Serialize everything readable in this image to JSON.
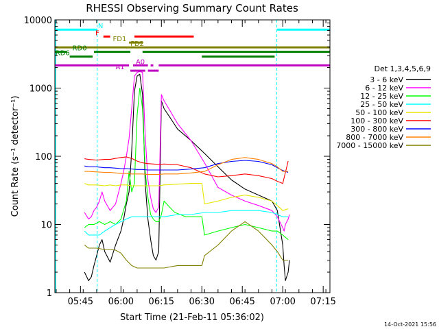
{
  "chart_data": {
    "type": "line",
    "title": "RHESSI Observing Summary Count Rates",
    "xlabel": "Start Time (21-Feb-11 05:36:02)",
    "ylabel": "Count Rate (s⁻¹ detector⁻¹)",
    "y_scale": "log",
    "ylim": [
      1,
      10000
    ],
    "xlim_minutes": [
      -0.5,
      101.5
    ],
    "x_ticks": [
      {
        "min": 9,
        "label": "05:45"
      },
      {
        "min": 24,
        "label": "06:00"
      },
      {
        "min": 39,
        "label": "06:15"
      },
      {
        "min": 54,
        "label": "06:30"
      },
      {
        "min": 69,
        "label": "06:45"
      },
      {
        "min": 84,
        "label": "07:00"
      },
      {
        "min": 99,
        "label": "07:15"
      }
    ],
    "y_ticks": [
      {
        "value": 1,
        "label": "1"
      },
      {
        "value": 10,
        "label": "10"
      },
      {
        "value": 100,
        "label": "100"
      },
      {
        "value": 1000,
        "label": "1000"
      },
      {
        "value": 10000,
        "label": "10000"
      }
    ],
    "legend_title": "Det 1,3,4,5,6,9",
    "legend_position": "right",
    "night_minutes": [
      [
        -0.5,
        15.2
      ],
      [
        81.8,
        101.5
      ]
    ],
    "series": [
      {
        "name": "3 - 6 keV",
        "color": "#000000",
        "x": [
          10.5,
          12,
          13,
          14,
          15,
          16,
          17,
          18,
          20,
          22,
          24,
          25,
          26,
          27,
          28,
          29,
          30,
          31,
          32,
          33,
          34,
          35,
          36,
          37,
          38,
          39,
          40,
          42,
          45,
          50,
          55,
          60,
          65,
          70,
          75,
          80,
          82,
          84,
          84.5,
          85,
          86,
          86.5
        ],
        "y": [
          2,
          1.5,
          1.7,
          2.5,
          3.5,
          5,
          6,
          4,
          2.8,
          5,
          8,
          12,
          20,
          30,
          120,
          900,
          1500,
          1600,
          800,
          40,
          12,
          6,
          3.5,
          3,
          4,
          650,
          500,
          380,
          250,
          170,
          110,
          70,
          45,
          33,
          27,
          22,
          16,
          5,
          2.5,
          1.5,
          2,
          3
        ]
      },
      {
        "name": "6 - 12 keV",
        "color": "#ff00ff",
        "x": [
          10.5,
          12,
          13,
          14,
          15,
          16,
          17,
          18,
          20,
          22,
          24,
          25,
          26,
          27,
          28,
          29,
          30,
          31,
          32,
          33,
          34,
          35,
          36,
          37,
          38,
          39,
          40,
          42,
          45,
          50,
          55,
          60,
          65,
          70,
          75,
          80,
          82,
          84,
          84.5,
          85,
          86,
          86.5
        ],
        "y": [
          15,
          12,
          13,
          16,
          18,
          22,
          30,
          22,
          16,
          20,
          40,
          60,
          100,
          180,
          500,
          1500,
          1700,
          1750,
          1700,
          200,
          45,
          25,
          17,
          15,
          18,
          800,
          650,
          480,
          300,
          170,
          80,
          35,
          27,
          22,
          19,
          16,
          13,
          9,
          8,
          10,
          12,
          14
        ]
      },
      {
        "name": "12 - 25 keV",
        "color": "#00ff00",
        "x": [
          10.5,
          12,
          14,
          16,
          18,
          20,
          22,
          24,
          26,
          27,
          28,
          29,
          30,
          31,
          32,
          33,
          34,
          35,
          36,
          37,
          38,
          39,
          40,
          42,
          44,
          46,
          48,
          50,
          54,
          55,
          60,
          65,
          70,
          75,
          80,
          82,
          84,
          86
        ],
        "y": [
          9,
          10,
          10,
          11,
          10,
          11,
          10,
          12,
          22,
          60,
          30,
          40,
          400,
          1000,
          500,
          60,
          25,
          14,
          12,
          11,
          11,
          14,
          22,
          18,
          15,
          14,
          13,
          13,
          13,
          7,
          8,
          9,
          10,
          9,
          8,
          8,
          7,
          6
        ]
      },
      {
        "name": "25 - 50 keV",
        "color": "#00ffff",
        "x": [
          10.5,
          12,
          14,
          16,
          18,
          20,
          22,
          24,
          26,
          28,
          30,
          32,
          34,
          36,
          38,
          40,
          45,
          50,
          55,
          60,
          65,
          70,
          75,
          80,
          82,
          84,
          86
        ],
        "y": [
          8,
          7,
          7,
          7,
          8,
          9,
          10,
          11,
          12,
          13,
          13,
          13,
          13,
          13,
          13,
          13,
          14,
          14,
          15,
          15,
          16,
          16,
          16,
          15,
          14,
          13,
          13
        ]
      },
      {
        "name": "50 - 100 keV",
        "color": "#e6e600",
        "x": [
          10.5,
          12,
          15,
          18,
          20,
          22,
          24,
          26,
          28,
          30,
          32,
          34,
          36,
          38,
          40,
          45,
          50,
          54,
          55,
          60,
          65,
          70,
          75,
          80,
          82,
          84,
          86
        ],
        "y": [
          40,
          38,
          38,
          37,
          38,
          37,
          38,
          38,
          37,
          37,
          37,
          37,
          37,
          37,
          38,
          39,
          40,
          40,
          20,
          22,
          25,
          27,
          25,
          22,
          19,
          16,
          17
        ]
      },
      {
        "name": "100 - 300 keV",
        "color": "#ff0000",
        "x": [
          10.5,
          12,
          15,
          18,
          20,
          22,
          24,
          26,
          28,
          30,
          32,
          34,
          36,
          38,
          40,
          45,
          50,
          55,
          60,
          65,
          70,
          75,
          80,
          82,
          84,
          86
        ],
        "y": [
          92,
          90,
          88,
          90,
          90,
          93,
          96,
          98,
          93,
          85,
          80,
          78,
          77,
          76,
          77,
          75,
          68,
          55,
          50,
          52,
          55,
          52,
          47,
          43,
          40,
          85
        ]
      },
      {
        "name": "300 - 800 keV",
        "color": "#0000ff",
        "x": [
          10.5,
          12,
          15,
          18,
          20,
          22,
          24,
          26,
          28,
          30,
          32,
          34,
          36,
          38,
          40,
          45,
          50,
          55,
          60,
          65,
          70,
          75,
          80,
          82,
          84,
          86
        ],
        "y": [
          72,
          70,
          70,
          68,
          68,
          67,
          66,
          66,
          65,
          64,
          64,
          63,
          63,
          63,
          63,
          63,
          65,
          68,
          78,
          84,
          87,
          84,
          75,
          68,
          62,
          58
        ]
      },
      {
        "name": "800 - 7000 keV",
        "color": "#ff8000",
        "x": [
          10.5,
          12,
          15,
          18,
          20,
          22,
          24,
          26,
          28,
          30,
          32,
          34,
          36,
          38,
          40,
          45,
          50,
          55,
          60,
          65,
          70,
          75,
          80,
          82,
          84,
          86
        ],
        "y": [
          60,
          60,
          59,
          58,
          58,
          57,
          56,
          56,
          55,
          55,
          55,
          54,
          54,
          54,
          55,
          55,
          57,
          60,
          75,
          90,
          96,
          90,
          78,
          70,
          60,
          60
        ]
      },
      {
        "name": "7000 - 15000 keV",
        "color": "#808000",
        "x": [
          10.5,
          12,
          15,
          18,
          20,
          22,
          24,
          26,
          28,
          30,
          32,
          34,
          36,
          38,
          40,
          45,
          50,
          54,
          55,
          60,
          65,
          70,
          75,
          80,
          82,
          84,
          86
        ],
        "y": [
          5,
          4.5,
          4.5,
          4.3,
          4.3,
          4.2,
          3.8,
          3,
          2.5,
          2.3,
          2.3,
          2.3,
          2.3,
          2.3,
          2.3,
          2.5,
          2.5,
          2.5,
          3.5,
          5,
          8,
          11,
          8,
          5,
          4,
          3,
          3
        ]
      }
    ],
    "flags": [
      {
        "label": "N",
        "color": "#00ffff",
        "level": 7200,
        "spans": [
          [
            -0.5,
            15.2
          ],
          [
            81.8,
            101.5
          ]
        ],
        "label_min": 15.5
      },
      {
        "label": "F",
        "color": "#ff0000",
        "level": 5700,
        "spans": [
          [
            17.5,
            20
          ],
          [
            29,
            51
          ]
        ],
        "label_min": 14.5
      },
      {
        "label": "FD1",
        "color": "#808000",
        "level": 4650,
        "spans": [
          [
            27,
            32
          ]
        ],
        "label_min": 21
      },
      {
        "label": "FD2",
        "color": "#808000",
        "level": 3950,
        "spans": [
          [
            -0.5,
            101.5
          ]
        ],
        "label_min": 27.5
      },
      {
        "label": "RD0",
        "color": "#008000",
        "level": 3400,
        "spans": [
          [
            -0.5,
            4
          ],
          [
            14,
            27.5
          ],
          [
            32,
            101.5
          ]
        ],
        "label_min": 6
      },
      {
        "label": "RD6",
        "color": "#008000",
        "level": 2900,
        "spans": [
          [
            5,
            13.5
          ],
          [
            54,
            81
          ]
        ],
        "label_min": -0.3
      },
      {
        "label": "A1",
        "color": "#c000c0",
        "level": 1800,
        "spans": [
          [
            27.5,
            33
          ],
          [
            34,
            38
          ]
        ],
        "label_min": 22
      },
      {
        "label": "A0",
        "color": "#c000c0",
        "level": 2150,
        "spans": [
          [
            -0.5,
            27
          ],
          [
            28.5,
            34
          ],
          [
            35,
            36
          ],
          [
            38,
            101.5
          ]
        ],
        "label_min": 29.5
      }
    ],
    "timestamp": "14-Oct-2021 15:56"
  }
}
